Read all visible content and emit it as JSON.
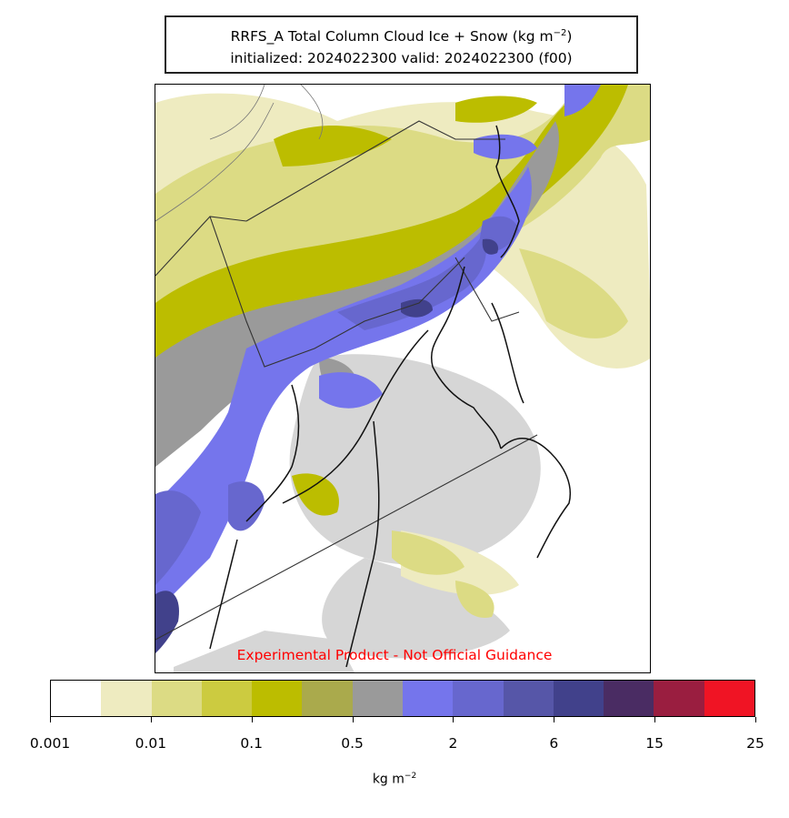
{
  "title": {
    "line1_prefix": "RRFS_A Total Column Cloud Ice + Snow (kg m",
    "line1_exp": "−2",
    "line1_suffix": ")",
    "line2": "initialized: 2024022300 valid: 2024022300 (f00)"
  },
  "watermark": "Experimental Product - Not Official Guidance",
  "colorbar": {
    "unit_prefix": "kg m",
    "unit_exp": "−2",
    "colors": [
      "#ffffff",
      "#eeebc0",
      "#dcdb84",
      "#cccb40",
      "#bcbd00",
      "#aaaa4c",
      "#9a9a9a",
      "#7575ec",
      "#6767ce",
      "#5656a8",
      "#41418b",
      "#4a2c63",
      "#9a1e40",
      "#f01424"
    ],
    "tick_labels": [
      "0.001",
      "0.01",
      "0.1",
      "0.5",
      "2",
      "6",
      "15",
      "25"
    ]
  }
}
